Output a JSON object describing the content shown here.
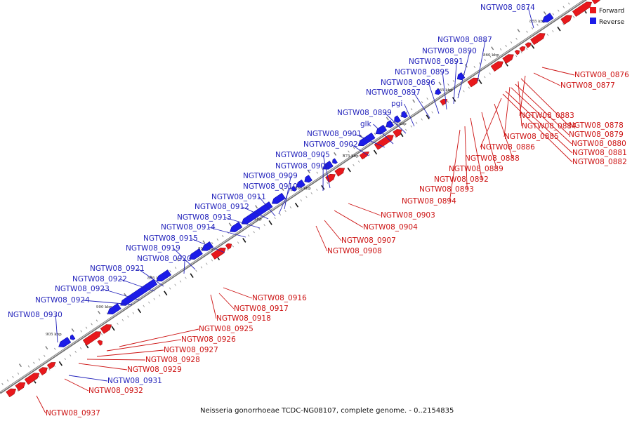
{
  "caption": "Neisseria gonorrhoeae TCDC-NG08107, complete genome. - 0..2154835",
  "colors": {
    "forward": "#e8181c",
    "reverse": "#1c1ce8",
    "forward_label": "#cc1111",
    "reverse_label": "#2222bb",
    "backbone": "#888888"
  },
  "legend": {
    "forward": "Forward",
    "reverse": "Reverse"
  },
  "kbp_marks": [
    "855 kbp",
    "860 kbp",
    "865 kbp",
    "870 kbp",
    "875 kbp",
    "880 kbp",
    "885 kbp",
    "890 kbp",
    "895 kbp",
    "900 kbp",
    "905 kbp"
  ],
  "reverse_genes": [
    "NGTW08_0874",
    "NGTW08_0887",
    "NGTW08_0890",
    "NGTW08_0891",
    "NGTW08_0895",
    "NGTW08_0896",
    "NGTW08_0897",
    "pgi",
    "NGTW08_0899",
    "glk",
    "NGTW08_0901",
    "NGTW08_0902",
    "NGTW08_0905",
    "NGTW08_0906",
    "NGTW08_0909",
    "NGTW08_0910",
    "NGTW08_0911",
    "NGTW08_0912",
    "NGTW08_0913",
    "NGTW08_0914",
    "NGTW08_0915",
    "NGTW08_0919",
    "NGTW08_0920",
    "NGTW08_0921",
    "NGTW08_0922",
    "NGTW08_0923",
    "NGTW08_0924",
    "NGTW08_0930",
    "NGTW08_0931"
  ],
  "forward_genes": [
    "NGTW08_0876",
    "NGTW08_0877",
    "NGTW08_0883",
    "NGTW08_0878",
    "NGTW08_0884",
    "NGTW08_0879",
    "NGTW08_0885",
    "NGTW08_0880",
    "NGTW08_0886",
    "NGTW08_0881",
    "NGTW08_0888",
    "NGTW08_0882",
    "NGTW08_0889",
    "NGTW08_0892",
    "NGTW08_0893",
    "NGTW08_0894",
    "NGTW08_0903",
    "NGTW08_0904",
    "NGTW08_0907",
    "NGTW08_0908",
    "NGTW08_0916",
    "NGTW08_0917",
    "NGTW08_0918",
    "NGTW08_0925",
    "NGTW08_0926",
    "NGTW08_0927",
    "NGTW08_0928",
    "NGTW08_0929",
    "NGTW08_0932",
    "NGTW08_0937"
  ]
}
